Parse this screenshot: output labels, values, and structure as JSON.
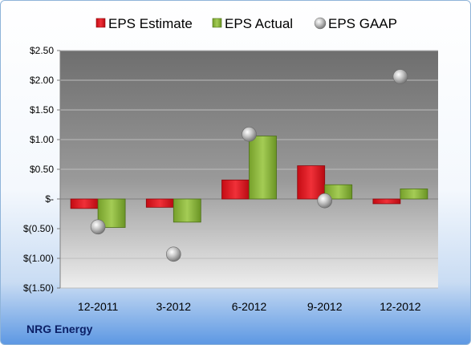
{
  "company": "NRG Energy",
  "colors": {
    "estimate": "#e3141d",
    "actual": "#8cb63a",
    "gaap": "#a8a8a8",
    "plot_bg": "#7f7f7f"
  },
  "chart_data": {
    "type": "bar",
    "categories": [
      "12-2011",
      "3-2012",
      "6-2012",
      "9-2012",
      "12-2012"
    ],
    "series": [
      {
        "name": "EPS Estimate",
        "kind": "bar",
        "values": [
          -0.16,
          -0.14,
          0.32,
          0.56,
          -0.08
        ]
      },
      {
        "name": "EPS Actual",
        "kind": "bar",
        "values": [
          -0.48,
          -0.39,
          1.06,
          0.24,
          0.17
        ]
      },
      {
        "name": "EPS GAAP",
        "kind": "scatter",
        "values": [
          -0.47,
          -0.93,
          1.09,
          -0.03,
          2.06
        ]
      }
    ],
    "y_ticks": [
      "$2.50",
      "$2.00",
      "$1.50",
      "$1.00",
      "$0.50",
      "$-",
      "$(0.50)",
      "$(1.00)",
      "$(1.50)"
    ],
    "ylim": [
      -1.5,
      2.5
    ],
    "grid": true,
    "legend_position": "top"
  }
}
